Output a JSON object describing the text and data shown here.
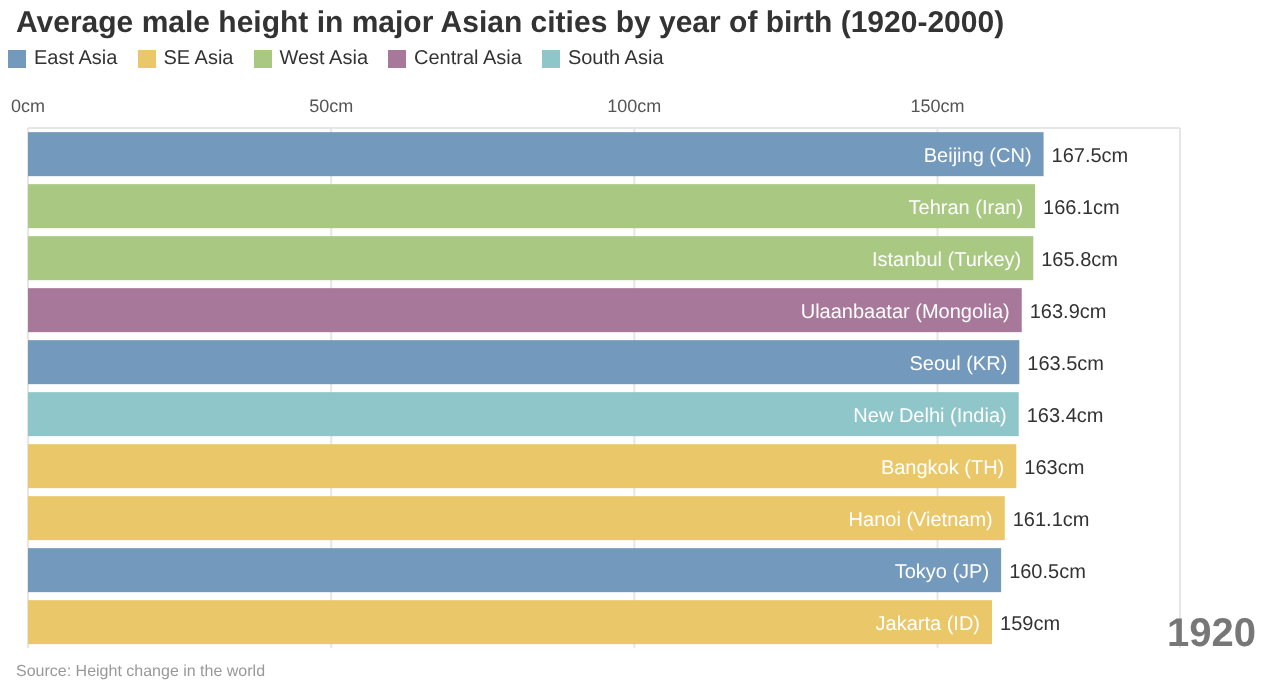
{
  "chart_data": {
    "type": "bar",
    "orientation": "horizontal",
    "stacked": true,
    "title": "Average male height in major Asian cities by year of birth (1920-2000)",
    "categories": [
      "Beijing (CN)",
      "Tehran (Iran)",
      "Istanbul (Turkey)",
      "Ulaanbaatar (Mongolia)",
      "Seoul (KR)",
      "New Delhi (India)",
      "Bangkok (TH)",
      "Hanoi (Vietnam)",
      "Tokyo (JP)",
      "Jakarta (ID)"
    ],
    "series": [
      {
        "name": "East Asia",
        "color": "#7399bd",
        "values": [
          167.5,
          null,
          null,
          null,
          163.5,
          null,
          null,
          null,
          160.5,
          null
        ]
      },
      {
        "name": "SE Asia",
        "color": "#eac86a",
        "values": [
          null,
          null,
          null,
          null,
          null,
          null,
          163,
          161.1,
          null,
          159
        ]
      },
      {
        "name": "West Asia",
        "color": "#a9c983",
        "values": [
          null,
          166.1,
          165.8,
          null,
          null,
          null,
          null,
          null,
          null,
          null
        ]
      },
      {
        "name": "Central Asia",
        "color": "#a8789a",
        "values": [
          null,
          null,
          null,
          163.9,
          null,
          null,
          null,
          null,
          null,
          null
        ]
      },
      {
        "name": "South Asia",
        "color": "#8ec6c9",
        "values": [
          null,
          null,
          null,
          null,
          null,
          163.4,
          null,
          null,
          null,
          null
        ]
      }
    ],
    "value_labels": [
      "167.5cm",
      "166.1cm",
      "165.8cm",
      "163.9cm",
      "163.5cm",
      "163.4cm",
      "163cm",
      "161.1cm",
      "160.5cm",
      "159cm"
    ],
    "xlim": [
      0,
      190
    ],
    "xticks": [
      {
        "value": 0,
        "label": "0cm"
      },
      {
        "value": 50,
        "label": "50cm"
      },
      {
        "value": 100,
        "label": "100cm"
      },
      {
        "value": 150,
        "label": "150cm"
      }
    ],
    "tick_labels": "x",
    "grid": "x",
    "legend": "top left",
    "annotations": [
      "1920",
      "Source: Height change in the world"
    ]
  }
}
